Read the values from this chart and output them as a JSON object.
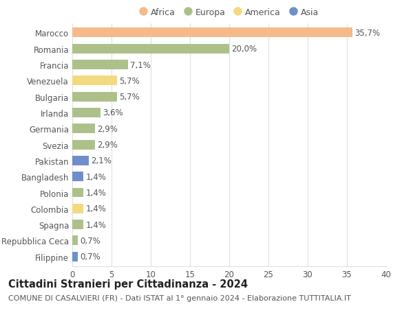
{
  "countries": [
    "Marocco",
    "Romania",
    "Francia",
    "Venezuela",
    "Bulgaria",
    "Irlanda",
    "Germania",
    "Svezia",
    "Pakistan",
    "Bangladesh",
    "Polonia",
    "Colombia",
    "Spagna",
    "Repubblica Ceca",
    "Filippine"
  ],
  "values": [
    35.7,
    20.0,
    7.1,
    5.7,
    5.7,
    3.6,
    2.9,
    2.9,
    2.1,
    1.4,
    1.4,
    1.4,
    1.4,
    0.7,
    0.7
  ],
  "labels": [
    "35,7%",
    "20,0%",
    "7,1%",
    "5,7%",
    "5,7%",
    "3,6%",
    "2,9%",
    "2,9%",
    "2,1%",
    "1,4%",
    "1,4%",
    "1,4%",
    "1,4%",
    "0,7%",
    "0,7%"
  ],
  "colors": [
    "#f5b98a",
    "#adc08a",
    "#adc08a",
    "#f5d980",
    "#adc08a",
    "#adc08a",
    "#adc08a",
    "#adc08a",
    "#6e8fcc",
    "#6e8fcc",
    "#adc08a",
    "#f5d980",
    "#adc08a",
    "#adc08a",
    "#6e8fcc"
  ],
  "legend_labels": [
    "Africa",
    "Europa",
    "America",
    "Asia"
  ],
  "legend_colors": [
    "#f5b98a",
    "#adc08a",
    "#f5d980",
    "#6e8fcc"
  ],
  "title": "Cittadini Stranieri per Cittadinanza - 2024",
  "subtitle": "COMUNE DI CASALVIERI (FR) - Dati ISTAT al 1° gennaio 2024 - Elaborazione TUTTITALIA.IT",
  "xlim": [
    0,
    40
  ],
  "xticks": [
    0,
    5,
    10,
    15,
    20,
    25,
    30,
    35,
    40
  ],
  "bg_color": "#ffffff",
  "grid_color": "#e0e0e0",
  "bar_height": 0.6,
  "label_fontsize": 8.5,
  "tick_fontsize": 8.5,
  "ytick_fontsize": 8.5,
  "title_fontsize": 10.5,
  "subtitle_fontsize": 8.0
}
